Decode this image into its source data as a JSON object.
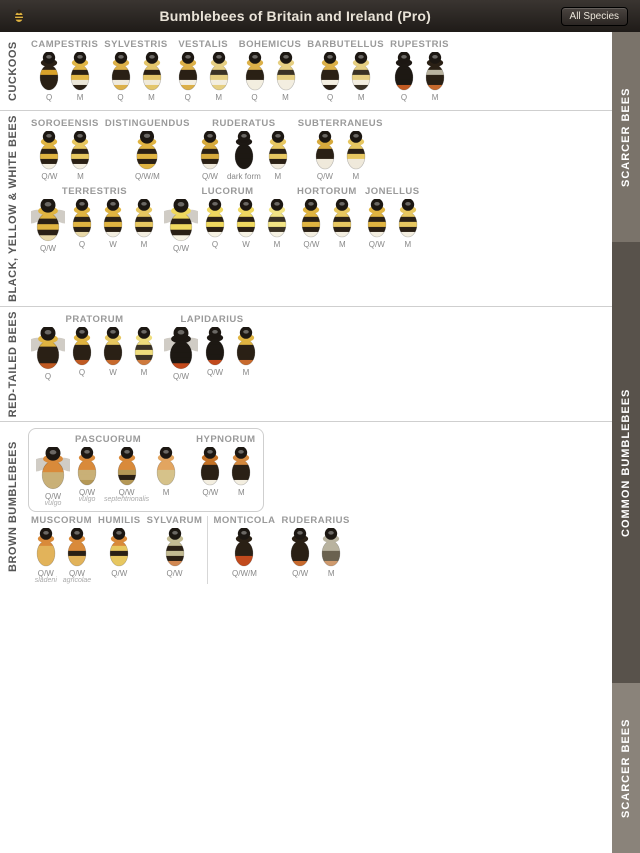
{
  "header": {
    "title": "Bumblebees of Britain and Ireland (Pro)",
    "all_species_btn": "All Species"
  },
  "side_tabs": {
    "scarcer_top": "SCARCER BEES",
    "common": "COMMON BUMBLEBEES",
    "scarcer_bot": "SCARCER BEES"
  },
  "bee_defaults": {
    "w": 28,
    "h": 40
  },
  "groups": [
    {
      "label": "CUCKOOS",
      "rows": [
        [
          {
            "name": "CAMPESTRIS",
            "variants": [
              {
                "l": "Q",
                "bands": [
                  "#2a2015",
                  "#d9a22a",
                  "#2a2015",
                  "#2a2015",
                  "#2a2015"
                ]
              },
              {
                "l": "M",
                "bands": [
                  "#e1b646",
                  "#2a2015",
                  "#e1b646",
                  "#ebe6d8",
                  "#2a2015"
                ]
              }
            ]
          },
          {
            "name": "SYLVESTRIS",
            "variants": [
              {
                "l": "Q",
                "bands": [
                  "#dcb048",
                  "#2a2015",
                  "#2a2015",
                  "#efe9db",
                  "#dcb048"
                ]
              },
              {
                "l": "M",
                "bands": [
                  "#e3c56a",
                  "#2a2015",
                  "#e3c56a",
                  "#f0ead9",
                  "#e3c56a"
                ]
              }
            ]
          },
          {
            "name": "VESTALIS",
            "variants": [
              {
                "l": "Q",
                "bands": [
                  "#dcb048",
                  "#2a2015",
                  "#2a2015",
                  "#f3eee0",
                  "#dcb048"
                ]
              },
              {
                "l": "M",
                "bands": [
                  "#e6cf82",
                  "#3a3225",
                  "#e6cf82",
                  "#f3eee0",
                  "#e6cf82"
                ]
              }
            ]
          },
          {
            "name": "BOHEMICUS",
            "variants": [
              {
                "l": "Q",
                "bands": [
                  "#dcb048",
                  "#2a2015",
                  "#2a2015",
                  "#f3eee0",
                  "#f3eee0"
                ]
              },
              {
                "l": "M",
                "bands": [
                  "#e6cf82",
                  "#3a3225",
                  "#e6cf82",
                  "#f3eee0",
                  "#f3eee0"
                ]
              }
            ]
          },
          {
            "name": "BARBUTELLUS",
            "variants": [
              {
                "l": "Q",
                "bands": [
                  "#dcb048",
                  "#2a2015",
                  "#2a2015",
                  "#f3eee0",
                  "#2a2015"
                ]
              },
              {
                "l": "M",
                "bands": [
                  "#e6cf82",
                  "#3a3225",
                  "#e6cf82",
                  "#f3eee0",
                  "#3a3225"
                ]
              }
            ]
          },
          {
            "name": "RUPESTRIS",
            "variants": [
              {
                "l": "Q",
                "bands": [
                  "#1d1813",
                  "#1d1813",
                  "#1d1813",
                  "#1d1813",
                  "#c25a22"
                ]
              },
              {
                "l": "M",
                "bands": [
                  "#2a2015",
                  "#b9b39f",
                  "#2a2015",
                  "#2a2015",
                  "#c86a2d"
                ]
              }
            ]
          }
        ]
      ]
    },
    {
      "label": "BLACK, YELLOW & WHITE BEES",
      "rows": [
        [
          {
            "name": "SOROEENSIS",
            "variants": [
              {
                "l": "Q/W",
                "bands": [
                  "#e0b441",
                  "#2a2015",
                  "#e0b441",
                  "#2a2015",
                  "#f3eee0"
                ]
              },
              {
                "l": "M",
                "bands": [
                  "#e7c760",
                  "#2a2015",
                  "#e7c760",
                  "#2a2015",
                  "#f3eee0"
                ]
              }
            ]
          },
          {
            "name": "DISTINGUENDUS",
            "variants": [
              {
                "l": "Q/W/M",
                "w": 32,
                "bands": [
                  "#e0b441",
                  "#2a2015",
                  "#e0b441",
                  "#2a2015",
                  "#e0b441"
                ]
              }
            ]
          },
          {
            "name": "RUDERATUS",
            "variants": [
              {
                "l": "Q/W",
                "bands": [
                  "#d7aa3c",
                  "#2a2015",
                  "#d7aa3c",
                  "#2a2015",
                  "#efe9db"
                ]
              },
              {
                "l": "dark form",
                "bands": [
                  "#1d1813",
                  "#1d1813",
                  "#1d1813",
                  "#1d1813",
                  "#1d1813"
                ]
              },
              {
                "l": "M",
                "bands": [
                  "#e7c760",
                  "#2a2015",
                  "#e7c760",
                  "#2a2015",
                  "#efe9db"
                ]
              }
            ]
          },
          {
            "name": "SUBTERRANEUS",
            "variants": [
              {
                "l": "Q/W",
                "bands": [
                  "#d7aa3c",
                  "#2a2015",
                  "#2a2015",
                  "#efe9db",
                  "#efe9db"
                ]
              },
              {
                "l": "M",
                "bands": [
                  "#e7c760",
                  "#2a2015",
                  "#e7c760",
                  "#efe9db",
                  "#efe9db"
                ]
              }
            ]
          }
        ],
        [
          {
            "name": "TERRESTRIS",
            "variants": [
              {
                "l": "Q/W",
                "wings": true,
                "w": 34,
                "h": 44,
                "bands": [
                  "#e0b441",
                  "#2a2015",
                  "#e0b441",
                  "#2a2015",
                  "#e7d7a6"
                ]
              },
              {
                "l": "Q",
                "bands": [
                  "#e0b441",
                  "#2a2015",
                  "#e0b441",
                  "#2a2015",
                  "#e7d7a6"
                ]
              },
              {
                "l": "W",
                "bands": [
                  "#e0b441",
                  "#2a2015",
                  "#e0b441",
                  "#2a2015",
                  "#f3eee0"
                ]
              },
              {
                "l": "M",
                "bands": [
                  "#e7c760",
                  "#2a2015",
                  "#e7c760",
                  "#2a2015",
                  "#f3eee0"
                ]
              }
            ]
          },
          {
            "name": "LUCORUM",
            "variants": [
              {
                "l": "Q/W",
                "wings": true,
                "w": 34,
                "h": 44,
                "bands": [
                  "#efd85f",
                  "#2a2015",
                  "#efd85f",
                  "#2a2015",
                  "#f6f2e3"
                ]
              },
              {
                "l": "Q",
                "bands": [
                  "#efd85f",
                  "#2a2015",
                  "#efd85f",
                  "#2a2015",
                  "#f6f2e3"
                ]
              },
              {
                "l": "W",
                "bands": [
                  "#efd85f",
                  "#2a2015",
                  "#efd85f",
                  "#2a2015",
                  "#f6f2e3"
                ]
              },
              {
                "l": "M",
                "bands": [
                  "#f2e485",
                  "#3a3225",
                  "#f2e485",
                  "#3a3225",
                  "#f6f2e3"
                ]
              }
            ]
          },
          {
            "name": "HORTORUM",
            "variants": [
              {
                "l": "Q/W",
                "bands": [
                  "#e0b441",
                  "#2a2015",
                  "#e0b441",
                  "#2a2015",
                  "#f3eee0"
                ]
              },
              {
                "l": "M",
                "bands": [
                  "#e7c760",
                  "#2a2015",
                  "#e7c760",
                  "#2a2015",
                  "#f3eee0"
                ]
              }
            ]
          },
          {
            "name": "JONELLUS",
            "variants": [
              {
                "l": "Q/W",
                "bands": [
                  "#e0b441",
                  "#2a2015",
                  "#e0b441",
                  "#2a2015",
                  "#f3eee0"
                ]
              },
              {
                "l": "M",
                "bands": [
                  "#e7c760",
                  "#2a2015",
                  "#e7c760",
                  "#2a2015",
                  "#f3eee0"
                ]
              }
            ]
          }
        ]
      ]
    },
    {
      "label": "RED-TAILED BEES",
      "rows": [
        [
          {
            "name": "PRATORUM",
            "variants": [
              {
                "l": "Q",
                "wings": true,
                "w": 34,
                "h": 44,
                "bands": [
                  "#e0b441",
                  "#2a2015",
                  "#2a2015",
                  "#2a2015",
                  "#c05a22"
                ]
              },
              {
                "l": "Q",
                "bands": [
                  "#e0b441",
                  "#2a2015",
                  "#2a2015",
                  "#2a2015",
                  "#c05a22"
                ]
              },
              {
                "l": "W",
                "bands": [
                  "#e7c760",
                  "#2a2015",
                  "#2a2015",
                  "#2a2015",
                  "#c86a2d"
                ]
              },
              {
                "l": "M",
                "bands": [
                  "#efdd7d",
                  "#3a3225",
                  "#efdd7d",
                  "#3a3225",
                  "#cf7a3d"
                ]
              }
            ]
          },
          {
            "name": "LAPIDARIUS",
            "variants": [
              {
                "l": "Q/W",
                "wings": true,
                "w": 34,
                "h": 44,
                "bands": [
                  "#1d1813",
                  "#1d1813",
                  "#1d1813",
                  "#1d1813",
                  "#c24a1d"
                ]
              },
              {
                "l": "Q/W",
                "bands": [
                  "#1d1813",
                  "#1d1813",
                  "#1d1813",
                  "#1d1813",
                  "#c24a1d"
                ]
              },
              {
                "l": "M",
                "bands": [
                  "#e0b441",
                  "#2a2015",
                  "#2a2015",
                  "#2a2015",
                  "#c86a2d"
                ]
              }
            ]
          }
        ]
      ]
    },
    {
      "label": "BROWN BUMBLEBEES",
      "rows": [
        [
          {
            "boxed": true,
            "sub": [
              {
                "name": "PASCUORUM",
                "variants": [
                  {
                    "l": "Q/W",
                    "sub": "vulgo",
                    "wings": true,
                    "w": 34,
                    "h": 44,
                    "bands": [
                      "#d98a3a",
                      "#d98a3a",
                      "#c9b077",
                      "#c9b077",
                      "#c9b077"
                    ]
                  },
                  {
                    "l": "Q/W",
                    "sub": "vulgo",
                    "bands": [
                      "#d98a3a",
                      "#d98a3a",
                      "#c9b077",
                      "#c9b077",
                      "#b59856"
                    ]
                  },
                  {
                    "l": "Q/W",
                    "sub": "septentrionalis",
                    "bands": [
                      "#d98a3a",
                      "#d98a3a",
                      "#b59856",
                      "#2a2015",
                      "#b59856"
                    ]
                  },
                  {
                    "l": "M",
                    "bands": [
                      "#e2a560",
                      "#e2a560",
                      "#d6c28a",
                      "#d6c28a",
                      "#d6c28a"
                    ]
                  }
                ]
              },
              {
                "name": "HYPNORUM",
                "variants": [
                  {
                    "l": "Q/W",
                    "bands": [
                      "#c47226",
                      "#2a2015",
                      "#2a2015",
                      "#2a2015",
                      "#f3eee0"
                    ]
                  },
                  {
                    "l": "M",
                    "bands": [
                      "#d4893e",
                      "#2a2015",
                      "#2a2015",
                      "#2a2015",
                      "#f3eee0"
                    ]
                  }
                ]
              }
            ]
          }
        ],
        [
          {
            "name": "MUSCORUM",
            "variants": [
              {
                "l": "Q/W",
                "sub": "sladeni",
                "bands": [
                  "#d98a3a",
                  "#e2b35a",
                  "#e2b35a",
                  "#e2b35a",
                  "#e2b35a"
                ]
              },
              {
                "l": "Q/W",
                "sub": "agricolae",
                "bands": [
                  "#d98a3a",
                  "#d98a3a",
                  "#2a2015",
                  "#e2b35a",
                  "#e2b35a"
                ]
              }
            ]
          },
          {
            "name": "HUMILIS",
            "variants": [
              {
                "l": "Q/W",
                "bands": [
                  "#d98a3a",
                  "#e7c760",
                  "#2a2015",
                  "#e7c760",
                  "#e7c760"
                ]
              }
            ]
          },
          {
            "name": "SYLVARUM",
            "variants": [
              {
                "l": "Q/W",
                "bands": [
                  "#c3bb92",
                  "#2a2015",
                  "#c3bb92",
                  "#2a2015",
                  "#d18852"
                ]
              }
            ]
          },
          {
            "divider": true
          },
          {
            "name": "MONTICOLA",
            "variants": [
              {
                "l": "Q/W/M",
                "bands": [
                  "#2a2015",
                  "#2a2015",
                  "#2a2015",
                  "#c24a1d",
                  "#c24a1d"
                ]
              }
            ]
          },
          {
            "name": "RUDERARIUS",
            "variants": [
              {
                "l": "Q/W",
                "bands": [
                  "#2a2015",
                  "#2a2015",
                  "#2a2015",
                  "#2a2015",
                  "#c86a2d"
                ]
              },
              {
                "l": "M",
                "bands": [
                  "#b9b39f",
                  "#b9b39f",
                  "#6a6250",
                  "#6a6250",
                  "#cf9a6d"
                ]
              }
            ]
          }
        ]
      ]
    }
  ]
}
